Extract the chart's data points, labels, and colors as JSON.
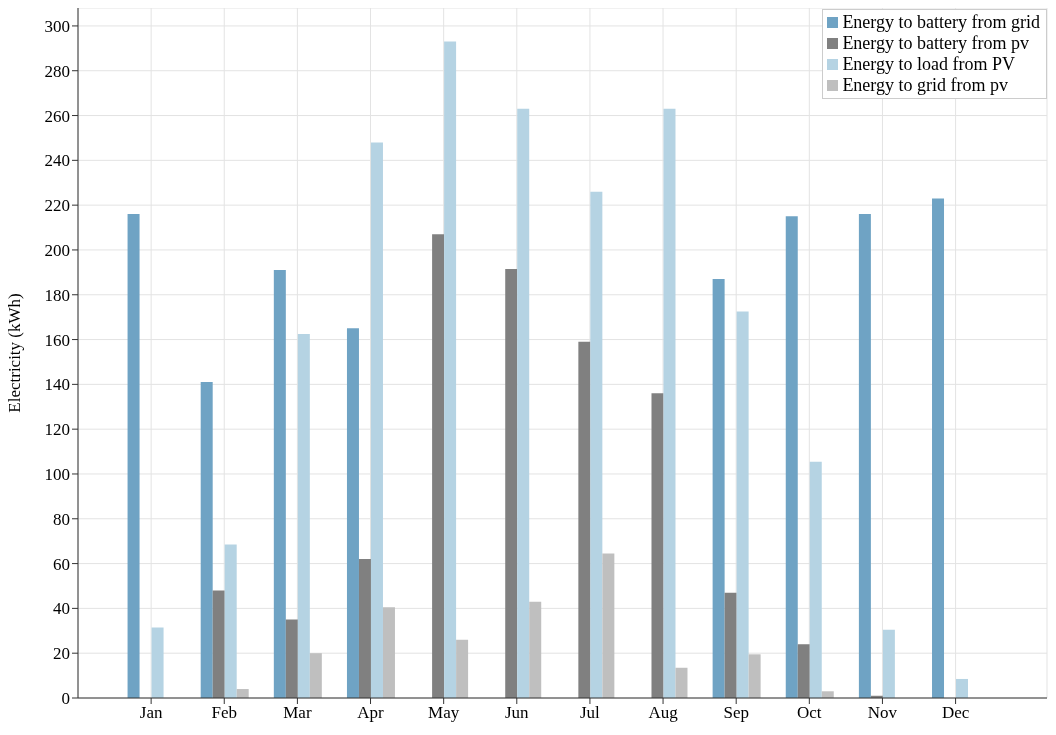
{
  "chart_data": {
    "type": "bar",
    "ylabel": "Electricity (kWh)",
    "categories": [
      "Jan",
      "Feb",
      "Mar",
      "Apr",
      "May",
      "Jun",
      "Jul",
      "Aug",
      "Sep",
      "Oct",
      "Nov",
      "Dec"
    ],
    "series": [
      {
        "name": "Energy to battery from grid",
        "color": "#6fa3c4",
        "values": [
          216,
          141,
          191,
          165,
          0,
          0,
          0,
          0,
          187,
          215,
          216,
          223
        ]
      },
      {
        "name": "Energy to battery from pv",
        "color": "#808080",
        "values": [
          0,
          48,
          35,
          62,
          207,
          191.5,
          159,
          136,
          47,
          24,
          1,
          0
        ]
      },
      {
        "name": "Energy to load from PV",
        "color": "#b5d3e3",
        "values": [
          31.5,
          68.5,
          162.5,
          248,
          293,
          263,
          226,
          263,
          172.5,
          105.5,
          30.5,
          8.5
        ]
      },
      {
        "name": "Energy to grid from pv",
        "color": "#bfbfbf",
        "values": [
          0,
          4,
          20,
          40.5,
          26,
          43,
          64.5,
          13.5,
          19.5,
          3,
          0,
          0
        ]
      }
    ],
    "ylim": [
      0,
      308
    ],
    "yticks": [
      0,
      20,
      40,
      60,
      80,
      100,
      120,
      140,
      160,
      180,
      200,
      220,
      240,
      260,
      280,
      300
    ],
    "grid": true,
    "legend": "top right"
  }
}
